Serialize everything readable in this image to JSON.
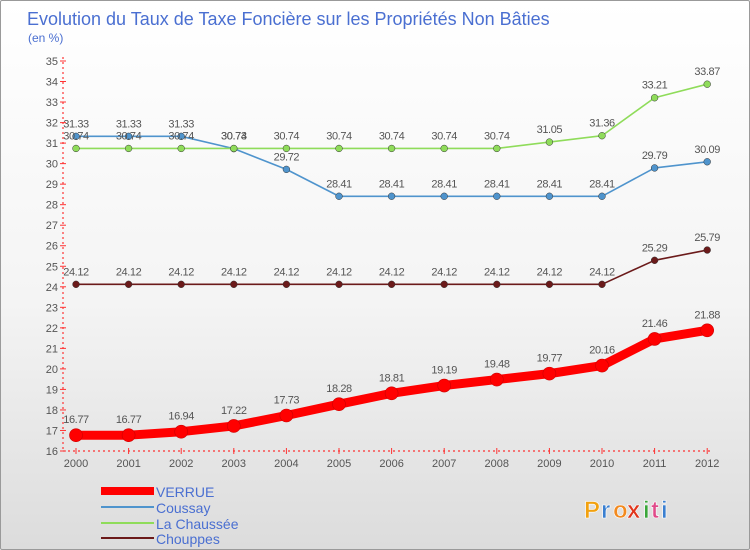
{
  "chart_data": {
    "type": "line",
    "title": "Evolution du Taux de Taxe Foncière sur les Propriétés Non Bâties",
    "ylabel": "(en %)",
    "xlabel": "",
    "ylim": [
      16,
      35
    ],
    "categories": [
      "2000",
      "2001",
      "2002",
      "2003",
      "2004",
      "2005",
      "2006",
      "2007",
      "2008",
      "2009",
      "2010",
      "2011",
      "2012"
    ],
    "y_ticks": [
      16,
      17,
      18,
      19,
      20,
      21,
      22,
      23,
      24,
      25,
      26,
      27,
      28,
      29,
      30,
      31,
      32,
      33,
      34,
      35
    ],
    "series": [
      {
        "name": "VERRUE",
        "color": "#ff0000",
        "values": [
          16.77,
          16.77,
          16.94,
          17.22,
          17.73,
          18.28,
          18.81,
          19.19,
          19.48,
          19.77,
          20.16,
          21.46,
          21.88
        ],
        "labels": [
          "16.77",
          "16.77",
          "16.94",
          "17.22",
          "17.73",
          "18.28",
          "18.81",
          "19.19",
          "19.48",
          "19.77",
          "20.16",
          "21.46",
          "21.88"
        ]
      },
      {
        "name": "Coussay",
        "color": "#4f94cd",
        "values": [
          31.33,
          31.33,
          31.33,
          30.73,
          29.72,
          28.41,
          28.41,
          28.41,
          28.41,
          28.41,
          28.41,
          29.79,
          30.09
        ],
        "labels": [
          "31.33",
          "31.33",
          "31.33",
          "30.73",
          "29.72",
          "28.41",
          "28.41",
          "28.41",
          "28.41",
          "28.41",
          "28.41",
          "29.79",
          "30.09"
        ]
      },
      {
        "name": "La Chaussée",
        "color": "#8fdc5a",
        "values": [
          30.74,
          30.74,
          30.74,
          30.74,
          30.74,
          30.74,
          30.74,
          30.74,
          30.74,
          31.05,
          31.36,
          33.21,
          33.87
        ],
        "labels": [
          "30.74",
          "30.74",
          "30.74",
          "30.74",
          "30.74",
          "30.74",
          "30.74",
          "30.74",
          "30.74",
          "31.05",
          "31.36",
          "33.21",
          "33.87"
        ]
      },
      {
        "name": "Chouppes",
        "color": "#6b1a1a",
        "values": [
          24.12,
          24.12,
          24.12,
          24.12,
          24.12,
          24.12,
          24.12,
          24.12,
          24.12,
          24.12,
          24.12,
          25.29,
          25.79
        ],
        "labels": [
          "24.12",
          "24.12",
          "24.12",
          "24.12",
          "24.12",
          "24.12",
          "24.12",
          "24.12",
          "24.12",
          "24.12",
          "24.12",
          "25.29",
          "25.79"
        ]
      }
    ],
    "legend_position": "bottom-left",
    "grid": false
  },
  "brand": {
    "logo_text": "Proxiti",
    "letters": [
      "P",
      "r",
      "o",
      "x",
      "i",
      "t",
      "i"
    ]
  },
  "colors": {
    "title": "#4a6fd1",
    "text": "#555555",
    "axis": "#ff3333",
    "legend_text": "#4a6fd1"
  }
}
